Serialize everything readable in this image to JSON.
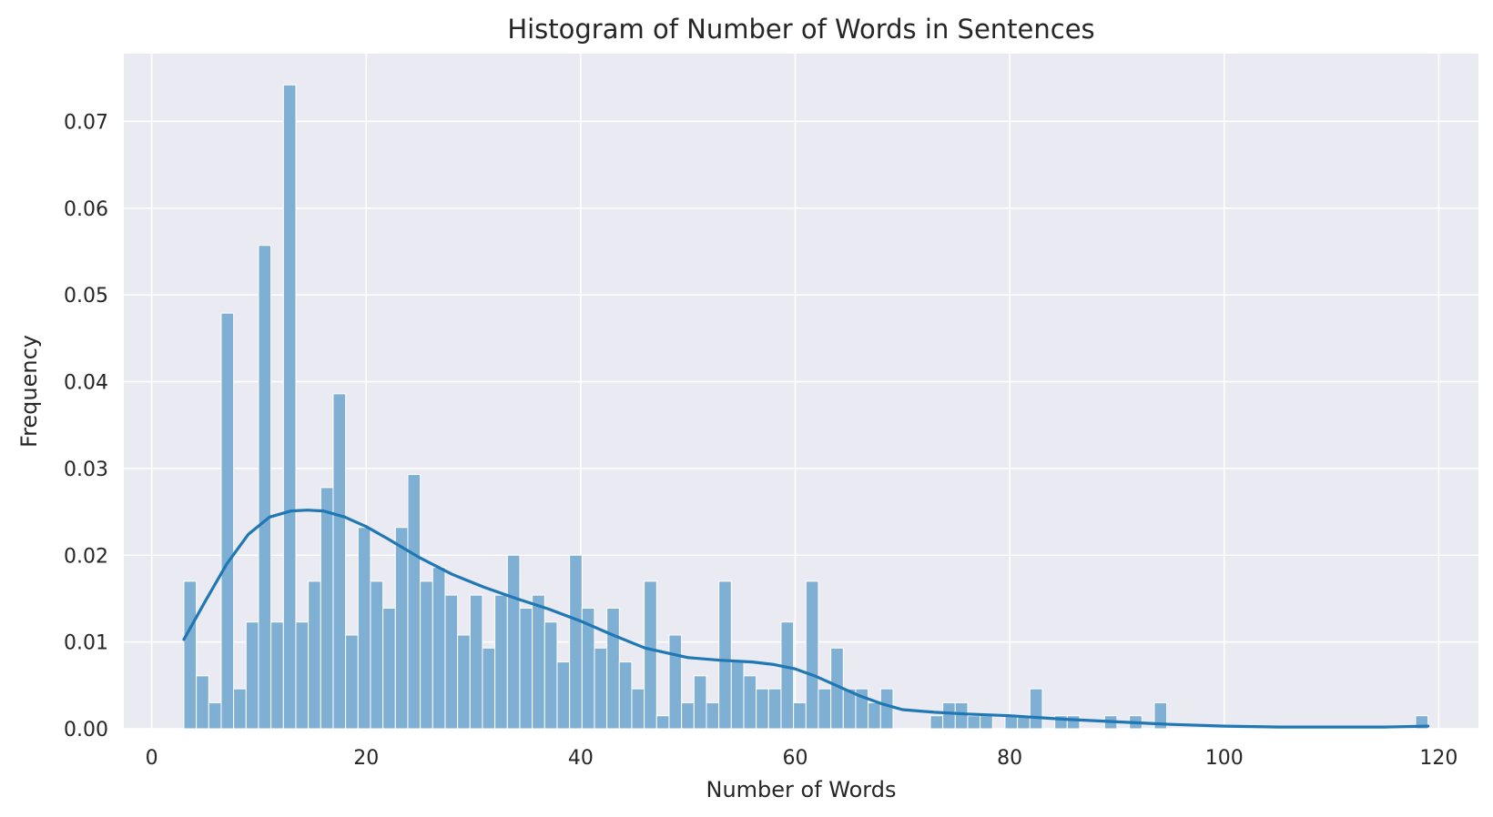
{
  "chart_data": {
    "type": "bar",
    "title": "Histogram of Number of Words in Sentences",
    "xlabel": "Number of Words",
    "ylabel": "Frequency",
    "xlim": [
      -2.6,
      123.7
    ],
    "ylim": [
      0,
      0.0778
    ],
    "x_ticks": [
      0,
      20,
      40,
      60,
      80,
      100,
      120
    ],
    "y_ticks": [
      0.0,
      0.01,
      0.02,
      0.03,
      0.04,
      0.05,
      0.06,
      0.07
    ],
    "x_tick_labels": [
      "0",
      "20",
      "40",
      "60",
      "80",
      "100",
      "120"
    ],
    "y_tick_labels": [
      "0.00",
      "0.01",
      "0.02",
      "0.03",
      "0.04",
      "0.05",
      "0.06",
      "0.07"
    ],
    "grid": true,
    "bin_start": 3,
    "bin_width": 1.16,
    "values": [
      0.017,
      0.0061,
      0.003,
      0.0479,
      0.0046,
      0.0123,
      0.0557,
      0.0123,
      0.0742,
      0.0123,
      0.017,
      0.0278,
      0.0386,
      0.0108,
      0.0232,
      0.017,
      0.0139,
      0.0232,
      0.0293,
      0.017,
      0.0186,
      0.0154,
      0.0108,
      0.0154,
      0.0093,
      0.0154,
      0.02,
      0.0139,
      0.0154,
      0.0123,
      0.0077,
      0.02,
      0.0139,
      0.0093,
      0.0139,
      0.0077,
      0.0046,
      0.017,
      0.0015,
      0.0108,
      0.003,
      0.0061,
      0.003,
      0.017,
      0.0077,
      0.0061,
      0.0046,
      0.0046,
      0.0123,
      0.003,
      0.017,
      0.0046,
      0.0093,
      0.0046,
      0.0046,
      0.003,
      0.0046,
      0,
      0,
      0,
      0.0015,
      0.003,
      0.003,
      0.0015,
      0.0015,
      0,
      0.0015,
      0.0015,
      0.0046,
      0,
      0.0015,
      0.0015,
      0,
      0,
      0.0015,
      0,
      0.0015,
      0,
      0.003,
      0,
      0,
      0,
      0,
      0,
      0,
      0,
      0,
      0,
      0,
      0,
      0,
      0,
      0,
      0,
      0,
      0,
      0,
      0,
      0,
      0.0015
    ],
    "kde": {
      "x": [
        3,
        5,
        7,
        9,
        11,
        13,
        14.5,
        16,
        18,
        20,
        22,
        25,
        28,
        31,
        34,
        37,
        40,
        43,
        46,
        50,
        53,
        56,
        58,
        60,
        62,
        64,
        66,
        68,
        70,
        73,
        76,
        80,
        85,
        90,
        95,
        100,
        105,
        110,
        115,
        119
      ],
      "y": [
        0.0103,
        0.0147,
        0.019,
        0.0224,
        0.0244,
        0.0251,
        0.0252,
        0.0251,
        0.0244,
        0.0233,
        0.0219,
        0.0197,
        0.0178,
        0.0163,
        0.015,
        0.0138,
        0.0124,
        0.0108,
        0.0093,
        0.0082,
        0.0079,
        0.0077,
        0.0074,
        0.0069,
        0.006,
        0.0049,
        0.0038,
        0.0029,
        0.0022,
        0.0019,
        0.0017,
        0.0015,
        0.0011,
        0.0008,
        0.0005,
        0.0003,
        0.0002,
        0.0002,
        0.0002,
        0.0003
      ]
    },
    "colors": {
      "background": "#EAEAF2",
      "grid": "#FFFFFF",
      "bar_fill": "#7FAFD3",
      "bar_edge": "#FFFFFF",
      "kde_line": "#1F77B4",
      "text": "#262626"
    }
  }
}
